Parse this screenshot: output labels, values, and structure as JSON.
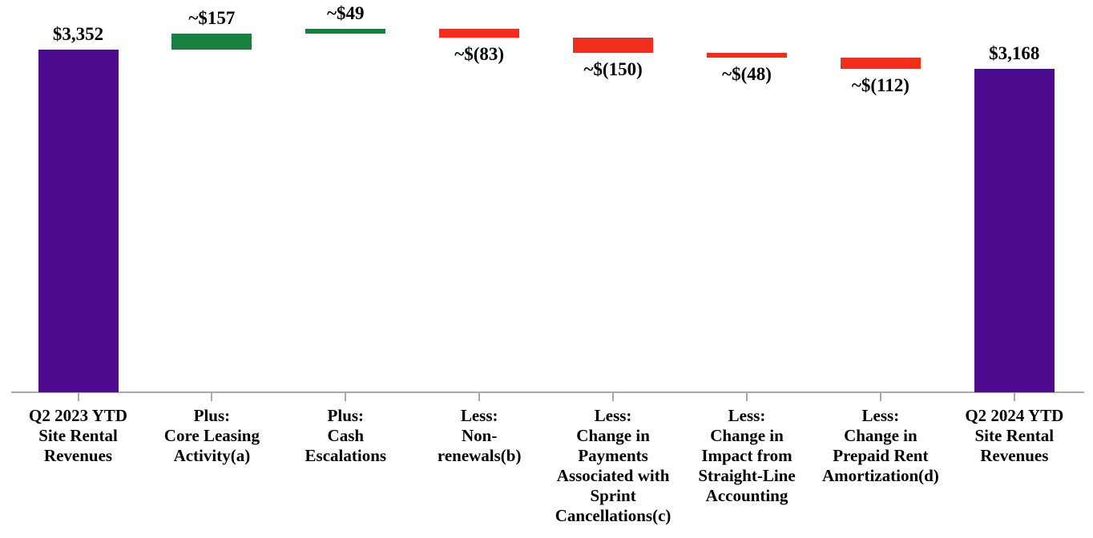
{
  "chart_data": {
    "type": "bar",
    "subtype": "waterfall",
    "categories": [
      "Q2 2023 YTD\nSite Rental\nRevenues",
      "Plus:\nCore Leasing\nActivity(a)",
      "Plus:\nCash\nEscalations",
      "Less:\nNon-\nrenewals(b)",
      "Less:\nChange in\nPayments\nAssociated with\nSprint\nCancellations(c)",
      "Less:\nChange in\nImpact from\nStraight-Line\nAccounting",
      "Less:\nChange in\nPrepaid Rent\nAmortization(d)",
      "Q2 2024 YTD\nSite Rental\nRevenues"
    ],
    "bars": [
      {
        "label": "$3,352",
        "value": 3352,
        "role": "total"
      },
      {
        "label": "~$157",
        "value": 157,
        "role": "increase"
      },
      {
        "label": "~$49",
        "value": 49,
        "role": "increase"
      },
      {
        "label": "~$(83)",
        "value": -83,
        "role": "decrease"
      },
      {
        "label": "~$(150)",
        "value": -150,
        "role": "decrease"
      },
      {
        "label": "~$(48)",
        "value": -48,
        "role": "decrease"
      },
      {
        "label": "~$(112)",
        "value": -112,
        "role": "decrease"
      },
      {
        "label": "$3,168",
        "value": 3168,
        "role": "total"
      }
    ],
    "colors": {
      "total": "#4D0C8F",
      "increase": "#178040",
      "decrease": "#F32D1E",
      "axis": "#A8A8A8",
      "label_text": "#000000",
      "background": "#FFFFFF"
    },
    "value_axis": {
      "min": 0,
      "max": 3558,
      "visible": false
    },
    "x_axis": {
      "line": true,
      "ticks": true
    },
    "legend": "none",
    "grid": "off"
  }
}
